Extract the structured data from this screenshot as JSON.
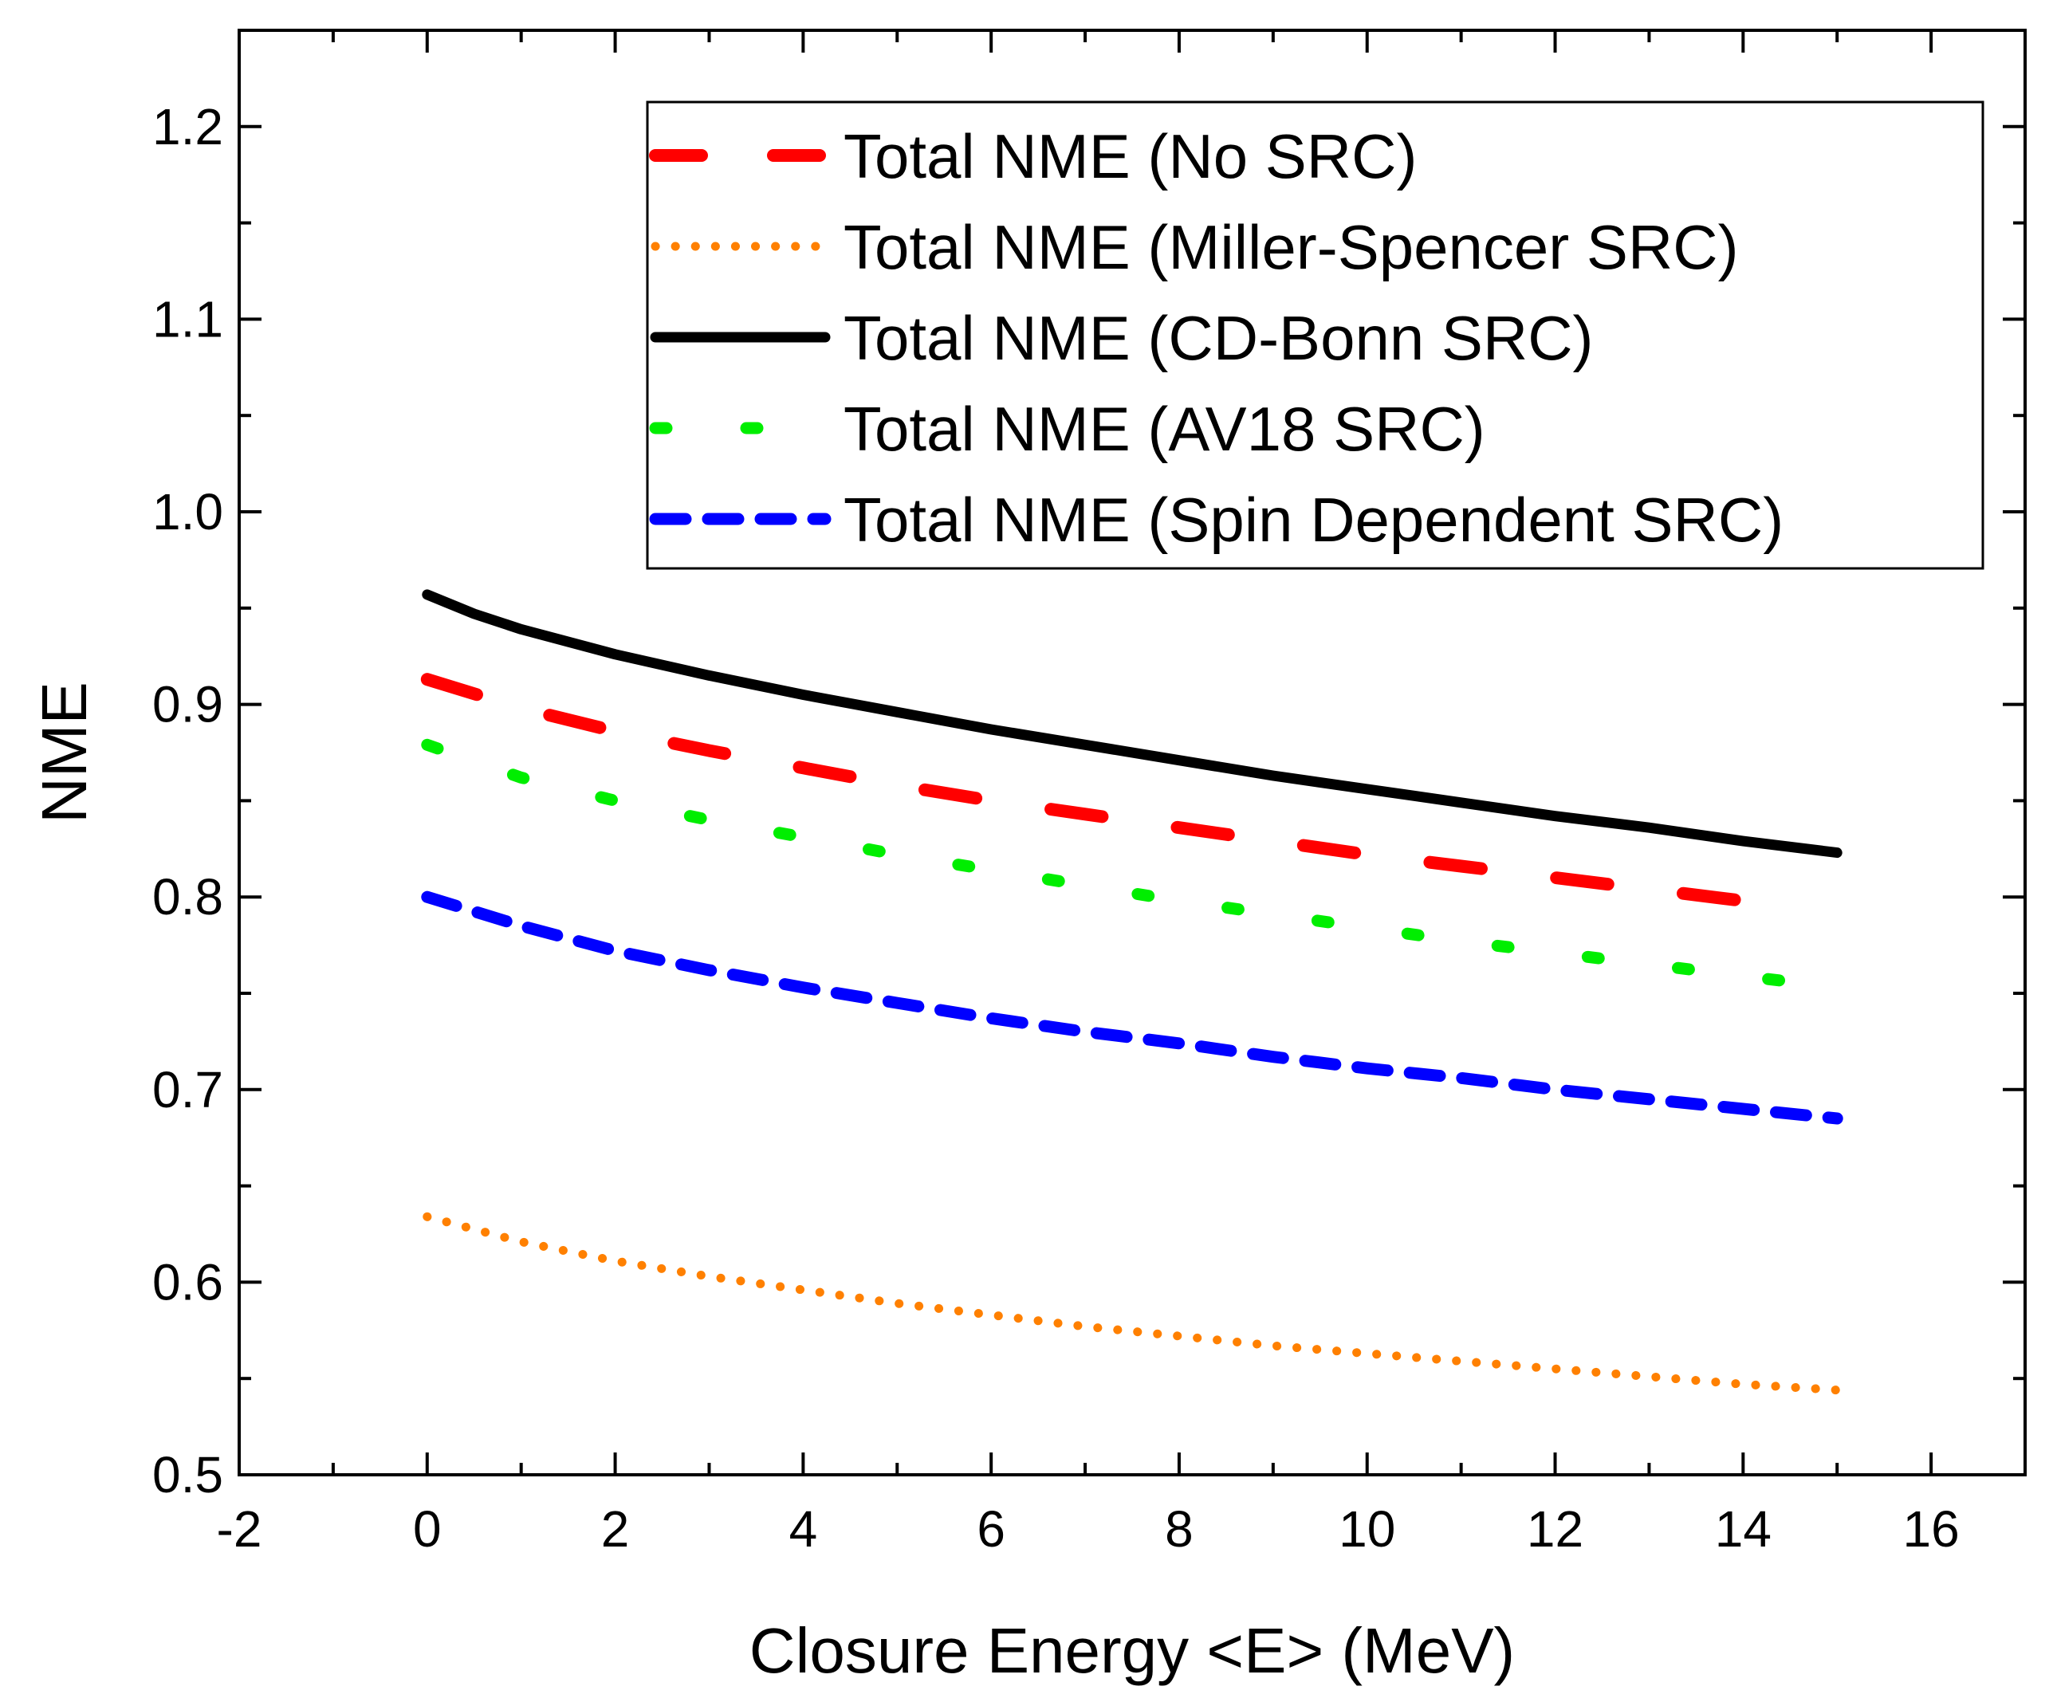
{
  "chart_data": {
    "type": "line",
    "title": "",
    "xlabel": "Closure Energy <E> (MeV)",
    "ylabel": "NME",
    "xlim": [
      -2,
      17
    ],
    "ylim": [
      0.5,
      1.25
    ],
    "xticks": [
      -2,
      0,
      2,
      4,
      6,
      8,
      10,
      12,
      14,
      16
    ],
    "xtick_labels": [
      "-2",
      "0",
      "2",
      "4",
      "6",
      "8",
      "10",
      "12",
      "14",
      "16"
    ],
    "yticks": [
      0.5,
      0.6,
      0.7,
      0.8,
      0.9,
      1.0,
      1.1,
      1.2
    ],
    "ytick_labels": [
      "0.5",
      "0.6",
      "0.7",
      "0.8",
      "0.9",
      "1.0",
      "1.1",
      "1.2"
    ],
    "legend_position": "top-right",
    "grid": false,
    "series": [
      {
        "name": "Total NME (No SRC)",
        "color": "#ff0000",
        "style": "long-dash",
        "x": [
          0,
          1,
          2,
          3,
          4,
          5,
          6,
          7,
          8,
          9,
          10,
          11,
          12,
          13,
          14,
          14.5
        ],
        "y": [
          0.913,
          0.898,
          0.886,
          0.876,
          0.867,
          0.858,
          0.85,
          0.843,
          0.836,
          0.829,
          0.822,
          0.816,
          0.81,
          0.804,
          0.798,
          0.795
        ]
      },
      {
        "name": "Total NME (Miller-Spencer SRC)",
        "color": "#ff8000",
        "style": "dotted",
        "x": [
          0,
          1,
          2,
          3,
          4,
          5,
          6,
          7,
          8,
          9,
          10,
          11,
          12,
          13,
          14,
          15
        ],
        "y": [
          0.634,
          0.621,
          0.611,
          0.603,
          0.596,
          0.589,
          0.583,
          0.577,
          0.572,
          0.567,
          0.563,
          0.559,
          0.555,
          0.551,
          0.547,
          0.544
        ]
      },
      {
        "name": "Total NME (CD-Bonn SRC)",
        "color": "#000000",
        "style": "solid",
        "x": [
          0,
          0.5,
          1,
          2,
          3,
          4,
          5,
          6,
          7,
          8,
          9,
          10,
          11,
          12,
          13,
          14,
          15
        ],
        "y": [
          0.957,
          0.947,
          0.939,
          0.926,
          0.915,
          0.905,
          0.896,
          0.887,
          0.879,
          0.871,
          0.863,
          0.856,
          0.849,
          0.842,
          0.836,
          0.829,
          0.823
        ]
      },
      {
        "name": "Total NME (AV18 SRC)",
        "color": "#00ee00",
        "style": "sparse-dash",
        "x": [
          0,
          1,
          2,
          3,
          4,
          5,
          6,
          7,
          8,
          9,
          10,
          11,
          12,
          13,
          14,
          15
        ],
        "y": [
          0.879,
          0.862,
          0.85,
          0.84,
          0.831,
          0.822,
          0.814,
          0.806,
          0.798,
          0.791,
          0.784,
          0.777,
          0.771,
          0.765,
          0.759,
          0.753
        ]
      },
      {
        "name": "Total NME (Spin Dependent SRC)",
        "color": "#0000ff",
        "style": "short-dash",
        "x": [
          0,
          1,
          2,
          3,
          4,
          5,
          6,
          7,
          8,
          9,
          10,
          11,
          12,
          13,
          14,
          15
        ],
        "y": [
          0.8,
          0.785,
          0.772,
          0.762,
          0.753,
          0.745,
          0.737,
          0.73,
          0.724,
          0.717,
          0.711,
          0.706,
          0.7,
          0.695,
          0.69,
          0.685
        ]
      }
    ]
  }
}
